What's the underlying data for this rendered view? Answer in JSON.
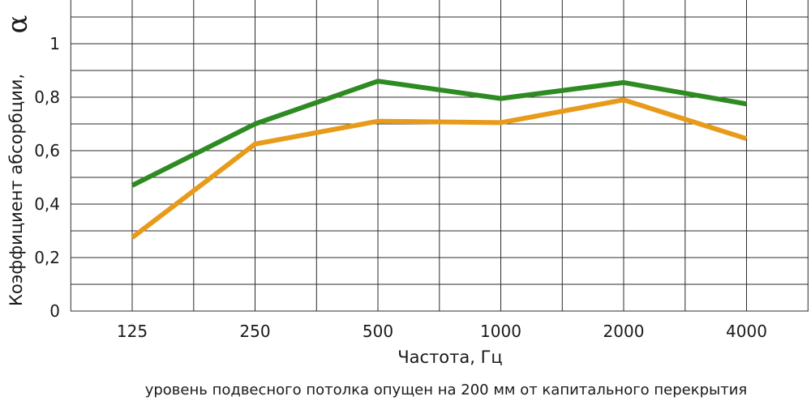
{
  "chart_data": {
    "type": "line",
    "title": "",
    "xlabel": "Частота, Гц",
    "ylabel": "Коэффициент абсорбции,",
    "ylabel_symbol": "α",
    "categories": [
      "125",
      "250",
      "500",
      "1000",
      "2000",
      "4000"
    ],
    "ylim": [
      0,
      1
    ],
    "yticks": [
      "0",
      "0,2",
      "0,4",
      "0,6",
      "0,8",
      "1"
    ],
    "grid": true,
    "series": [
      {
        "color": "#2e8b22",
        "values": [
          0.47,
          0.7,
          0.86,
          0.795,
          0.855,
          0.775
        ]
      },
      {
        "color": "#e89b1a",
        "values": [
          0.275,
          0.625,
          0.71,
          0.705,
          0.79,
          0.645
        ]
      }
    ],
    "note": "уровень подвесного потолка опущен на 200 мм от капитального перекрытия"
  }
}
